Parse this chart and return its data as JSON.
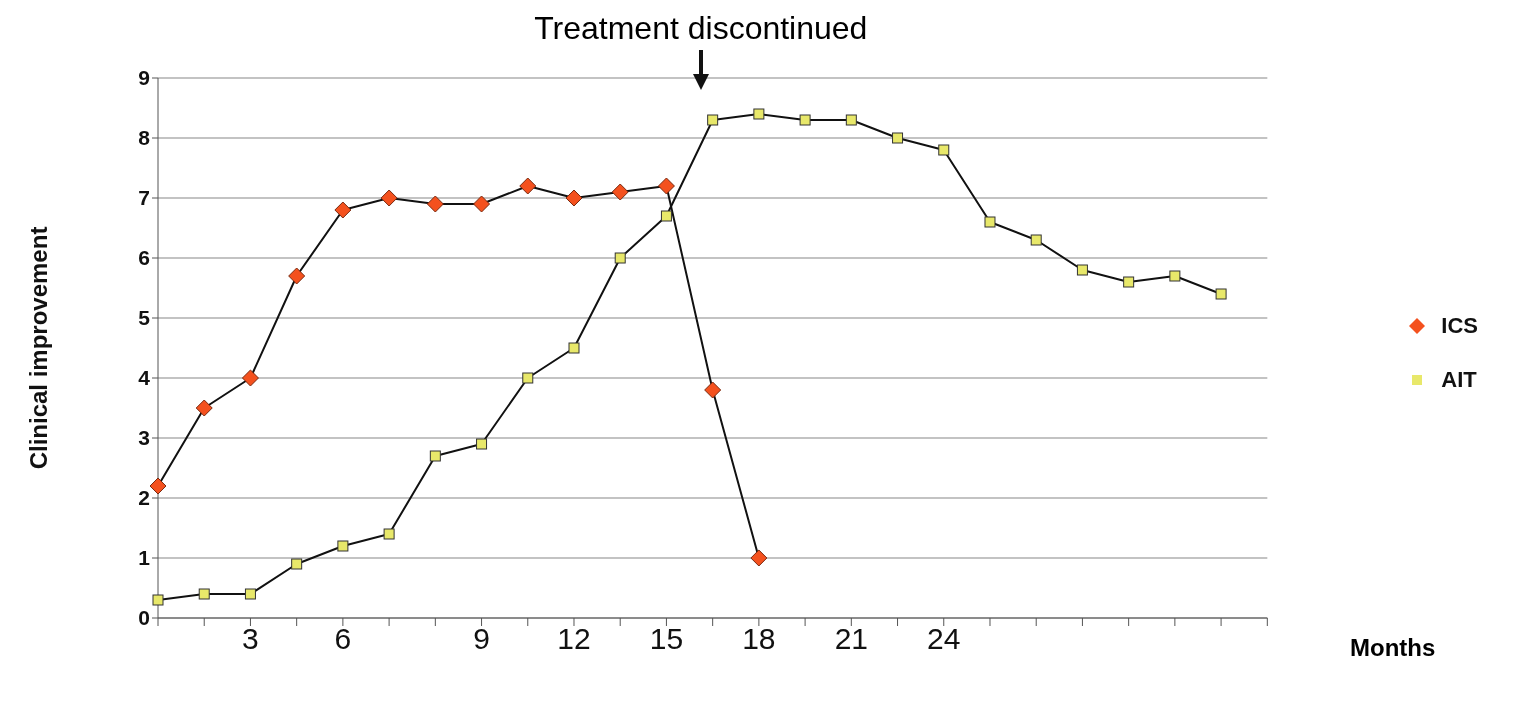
{
  "chart_data": {
    "type": "line",
    "ylabel": "Clinical improvement",
    "xlabel": "Months",
    "categories": [
      null,
      null,
      "3",
      null,
      "6",
      null,
      null,
      "9",
      null,
      "12",
      null,
      "15",
      null,
      "18",
      null,
      "21",
      null,
      "24",
      null,
      null,
      null,
      null,
      null,
      null,
      null
    ],
    "series": [
      {
        "name": "ICS",
        "color": "#f4511e",
        "marker": "diamond",
        "values": [
          2.2,
          3.5,
          4.0,
          5.7,
          6.8,
          7.0,
          6.9,
          6.9,
          7.2,
          7.0,
          7.1,
          7.2,
          3.8,
          1.0,
          null,
          null,
          null,
          null,
          null,
          null,
          null,
          null,
          null,
          null,
          null
        ]
      },
      {
        "name": "AIT",
        "color": "#e8e86a",
        "marker": "square",
        "values": [
          0.3,
          0.4,
          0.4,
          0.9,
          1.2,
          1.4,
          2.7,
          2.9,
          4.0,
          4.5,
          6.0,
          6.7,
          8.3,
          8.4,
          8.3,
          8.3,
          8.0,
          7.8,
          6.6,
          6.3,
          5.8,
          5.6,
          5.7,
          5.4,
          null
        ]
      }
    ],
    "ylim": [
      0,
      9
    ],
    "yticks": [
      0,
      1,
      2,
      3,
      4,
      5,
      6,
      7,
      8,
      9
    ],
    "grid": "y",
    "legend": "right",
    "annotations": [
      "Treatment discontinued"
    ]
  }
}
